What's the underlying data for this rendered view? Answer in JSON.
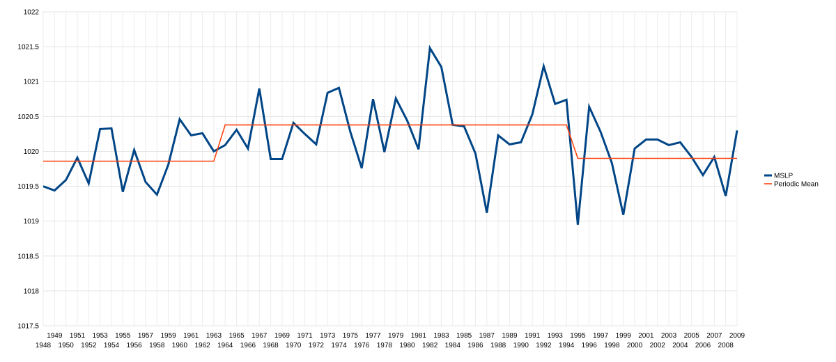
{
  "chart_data": {
    "type": "line",
    "title": "",
    "xlabel": "",
    "ylabel": "",
    "ylim": [
      1017.5,
      1022
    ],
    "y_ticks": [
      "1017.5",
      "1018",
      "1018.5",
      "1019",
      "1019.5",
      "1020",
      "1020.5",
      "1021",
      "1021.5",
      "1022"
    ],
    "grid": true,
    "legend_position": "right",
    "x": [
      1948,
      1949,
      1950,
      1951,
      1952,
      1953,
      1954,
      1955,
      1956,
      1957,
      1958,
      1959,
      1960,
      1961,
      1962,
      1963,
      1964,
      1965,
      1966,
      1967,
      1968,
      1969,
      1970,
      1971,
      1972,
      1973,
      1974,
      1975,
      1976,
      1977,
      1978,
      1979,
      1980,
      1981,
      1982,
      1983,
      1984,
      1985,
      1986,
      1987,
      1988,
      1989,
      1990,
      1991,
      1992,
      1993,
      1994,
      1995,
      1996,
      1997,
      1998,
      1999,
      2000,
      2001,
      2002,
      2003,
      2004,
      2005,
      2006,
      2007,
      2008,
      2009
    ],
    "series": [
      {
        "name": "MSLP",
        "color": "#004586",
        "values": [
          1019.5,
          1019.44,
          1019.59,
          1019.91,
          1019.54,
          1020.32,
          1020.33,
          1019.42,
          1020.02,
          1019.56,
          1019.38,
          1019.81,
          1020.46,
          1020.23,
          1020.26,
          1020.0,
          1020.09,
          1020.31,
          1020.04,
          1020.9,
          1019.89,
          1019.89,
          1020.41,
          1020.25,
          1020.1,
          1020.84,
          1020.91,
          1020.28,
          1019.76,
          1020.75,
          1019.99,
          1020.76,
          1020.44,
          1020.03,
          1021.48,
          1021.21,
          1020.38,
          1020.36,
          1019.97,
          1019.12,
          1020.23,
          1020.1,
          1020.13,
          1020.53,
          1021.22,
          1020.68,
          1020.74,
          1018.95,
          1020.64,
          1020.28,
          1019.83,
          1019.09,
          1020.04,
          1020.17,
          1020.17,
          1020.09,
          1020.13,
          1019.92,
          1019.66,
          1019.92,
          1019.36,
          1020.3
        ]
      },
      {
        "name": "Periodic Mean",
        "color": "#ff420e",
        "values": [
          1019.86,
          1019.86,
          1019.86,
          1019.86,
          1019.86,
          1019.86,
          1019.86,
          1019.86,
          1019.86,
          1019.86,
          1019.86,
          1019.86,
          1019.86,
          1019.86,
          1019.86,
          1019.86,
          1020.38,
          1020.38,
          1020.38,
          1020.38,
          1020.38,
          1020.38,
          1020.38,
          1020.38,
          1020.38,
          1020.38,
          1020.38,
          1020.38,
          1020.38,
          1020.38,
          1020.38,
          1020.38,
          1020.38,
          1020.38,
          1020.38,
          1020.38,
          1020.38,
          1020.38,
          1020.38,
          1020.38,
          1020.38,
          1020.38,
          1020.38,
          1020.38,
          1020.38,
          1020.38,
          1020.38,
          1019.9,
          1019.9,
          1019.9,
          1019.9,
          1019.9,
          1019.9,
          1019.9,
          1019.9,
          1019.9,
          1019.9,
          1019.9,
          1019.9,
          1019.9,
          1019.9,
          1019.9
        ]
      }
    ]
  }
}
